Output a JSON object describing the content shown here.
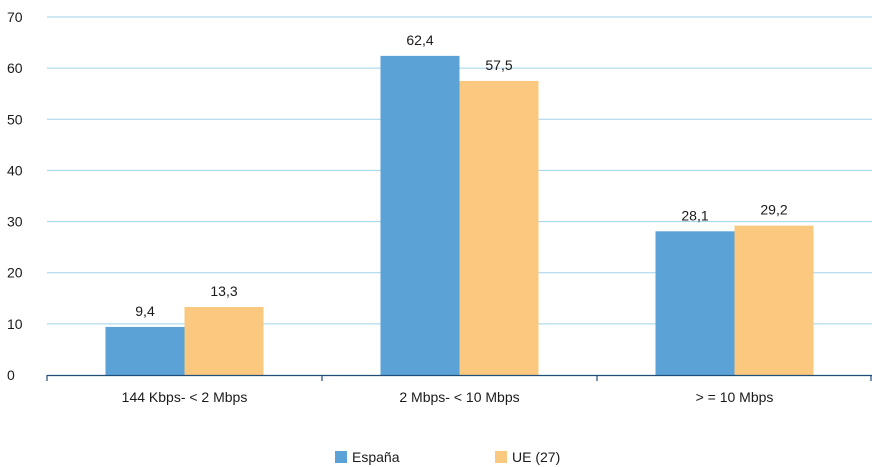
{
  "chart_data": {
    "type": "bar",
    "categories": [
      "144 Kbps- < 2 Mbps",
      "2 Mbps- < 10 Mbps",
      "> = 10 Mbps"
    ],
    "series": [
      {
        "name": "España",
        "values": [
          9.4,
          62.4,
          28.1
        ],
        "labels": [
          "9,4",
          "62,4",
          "28,1"
        ],
        "color": "#5ba3d6"
      },
      {
        "name": "UE (27)",
        "values": [
          13.3,
          57.5,
          29.2
        ],
        "labels": [
          "13,3",
          "57,5",
          "29,2"
        ],
        "color": "#fac87e"
      }
    ],
    "ylim": [
      0,
      70
    ],
    "yticks": [
      0,
      10,
      20,
      30,
      40,
      50,
      60,
      70
    ],
    "grid": true,
    "legend_position": "bottom-center",
    "title": "",
    "xlabel": "",
    "ylabel": ""
  }
}
